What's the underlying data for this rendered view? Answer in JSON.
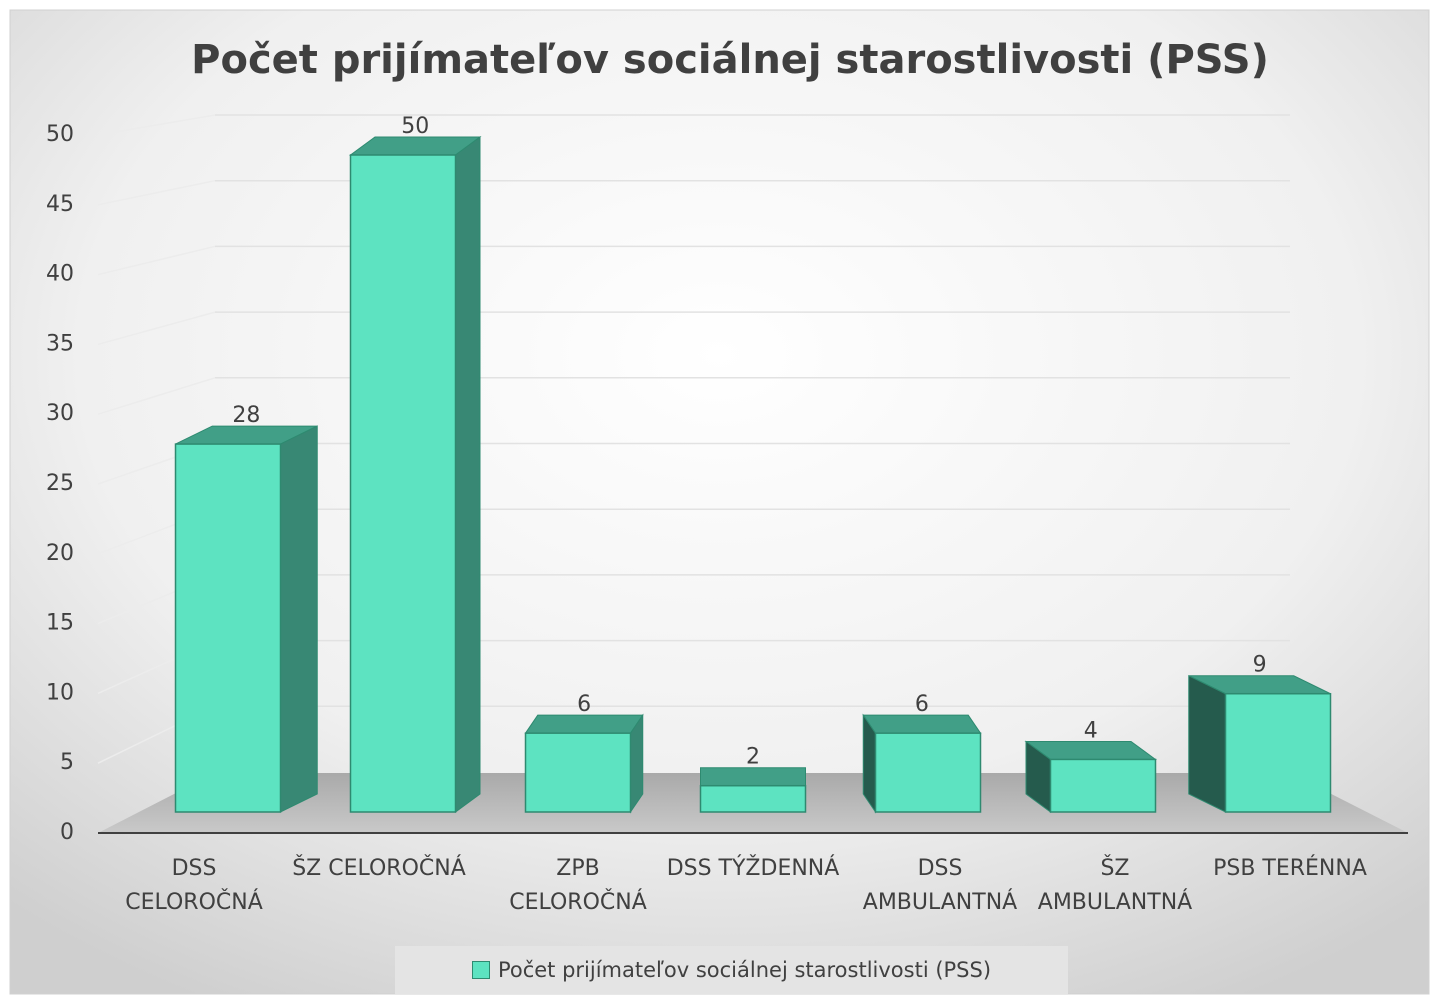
{
  "chart_data": {
    "type": "bar3d",
    "title": "Počet prijímateľov sociálnej starostlivosti (PSS)",
    "categories": [
      "DSS CELOROČNÁ",
      "ŠZ CELOROČNÁ",
      "ZPB CELOROČNÁ",
      "DSS TÝŽDENNÁ",
      "DSS AMBULANTNÁ",
      "ŠZ AMBULANTNÁ",
      "PSB TERÉNNA"
    ],
    "series": [
      {
        "name": "Počet prijímateľov sociálnej starostlivosti (PSS)",
        "color": "#5de3c1",
        "values": [
          28,
          50,
          6,
          2,
          6,
          4,
          9
        ]
      }
    ],
    "ylim": [
      0,
      50
    ],
    "yticks": [
      0,
      5,
      10,
      15,
      20,
      25,
      30,
      35,
      40,
      45,
      50
    ],
    "grid": true,
    "legend": "bottom"
  }
}
